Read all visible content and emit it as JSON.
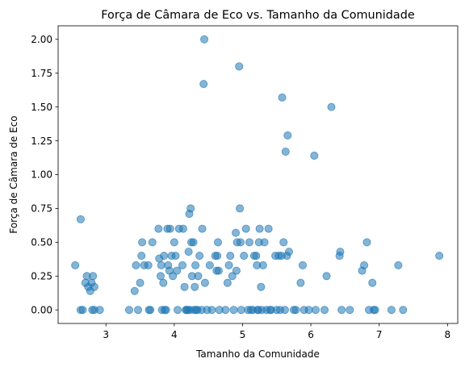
{
  "chart_data": {
    "type": "scatter",
    "title": "Força de Câmara de Eco vs. Tamanho da Comunidade",
    "xlabel": "Tamanho da Comunidade",
    "ylabel": "Força de Câmara de Eco",
    "xlim": [
      2.3,
      8.15
    ],
    "ylim": [
      -0.1,
      2.1
    ],
    "xticks": [
      3,
      4,
      5,
      6,
      7,
      8
    ],
    "xtick_labels": [
      "3",
      "4",
      "5",
      "6",
      "7",
      "8"
    ],
    "yticks": [
      0.0,
      0.25,
      0.5,
      0.75,
      1.0,
      1.25,
      1.5,
      1.75,
      2.0
    ],
    "ytick_labels": [
      "0.00",
      "0.25",
      "0.50",
      "0.75",
      "1.00",
      "1.25",
      "1.50",
      "1.75",
      "2.00"
    ],
    "grid": false,
    "point_color": "#1f77b4",
    "point_alpha": 0.55,
    "points": [
      {
        "x": 2.55,
        "y": 0.33
      },
      {
        "x": 2.63,
        "y": 0.67
      },
      {
        "x": 2.63,
        "y": 0.0
      },
      {
        "x": 2.66,
        "y": 0.0
      },
      {
        "x": 2.7,
        "y": 0.2
      },
      {
        "x": 2.72,
        "y": 0.25
      },
      {
        "x": 2.74,
        "y": 0.17
      },
      {
        "x": 2.77,
        "y": 0.14
      },
      {
        "x": 2.79,
        "y": 0.2
      },
      {
        "x": 2.8,
        "y": 0.0
      },
      {
        "x": 2.81,
        "y": 0.25
      },
      {
        "x": 2.83,
        "y": 0.17
      },
      {
        "x": 2.83,
        "y": 0.0
      },
      {
        "x": 2.91,
        "y": 0.0
      },
      {
        "x": 3.34,
        "y": 0.0
      },
      {
        "x": 3.42,
        "y": 0.14
      },
      {
        "x": 3.44,
        "y": 0.33
      },
      {
        "x": 3.47,
        "y": 0.0
      },
      {
        "x": 3.5,
        "y": 0.2
      },
      {
        "x": 3.52,
        "y": 0.4
      },
      {
        "x": 3.53,
        "y": 0.5
      },
      {
        "x": 3.56,
        "y": 0.33
      },
      {
        "x": 3.62,
        "y": 0.33
      },
      {
        "x": 3.63,
        "y": 0.0
      },
      {
        "x": 3.65,
        "y": 0.0
      },
      {
        "x": 3.68,
        "y": 0.5
      },
      {
        "x": 3.77,
        "y": 0.6
      },
      {
        "x": 3.78,
        "y": 0.38
      },
      {
        "x": 3.8,
        "y": 0.25
      },
      {
        "x": 3.81,
        "y": 0.33
      },
      {
        "x": 3.82,
        "y": 0.0
      },
      {
        "x": 3.84,
        "y": 0.2
      },
      {
        "x": 3.85,
        "y": 0.4
      },
      {
        "x": 3.86,
        "y": 0.0
      },
      {
        "x": 3.88,
        "y": 0.0
      },
      {
        "x": 3.9,
        "y": 0.6
      },
      {
        "x": 3.91,
        "y": 0.33
      },
      {
        "x": 3.93,
        "y": 0.29
      },
      {
        "x": 3.94,
        "y": 0.6
      },
      {
        "x": 3.96,
        "y": 0.4
      },
      {
        "x": 3.98,
        "y": 0.25
      },
      {
        "x": 4.0,
        "y": 0.5
      },
      {
        "x": 4.02,
        "y": 0.4
      },
      {
        "x": 4.04,
        "y": 0.29
      },
      {
        "x": 4.05,
        "y": 0.0
      },
      {
        "x": 4.07,
        "y": 0.6
      },
      {
        "x": 4.12,
        "y": 0.33
      },
      {
        "x": 4.13,
        "y": 0.6
      },
      {
        "x": 4.15,
        "y": 0.17
      },
      {
        "x": 4.17,
        "y": 0.0
      },
      {
        "x": 4.18,
        "y": 0.0
      },
      {
        "x": 4.2,
        "y": 0.0
      },
      {
        "x": 4.21,
        "y": 0.43
      },
      {
        "x": 4.22,
        "y": 0.71
      },
      {
        "x": 4.23,
        "y": 0.0
      },
      {
        "x": 4.24,
        "y": 0.75
      },
      {
        "x": 4.25,
        "y": 0.5
      },
      {
        "x": 4.26,
        "y": 0.25
      },
      {
        "x": 4.28,
        "y": 0.5
      },
      {
        "x": 4.29,
        "y": 0.0
      },
      {
        "x": 4.3,
        "y": 0.17
      },
      {
        "x": 4.31,
        "y": 0.33
      },
      {
        "x": 4.32,
        "y": 0.0
      },
      {
        "x": 4.34,
        "y": 0.0
      },
      {
        "x": 4.35,
        "y": 0.25
      },
      {
        "x": 4.37,
        "y": 0.4
      },
      {
        "x": 4.4,
        "y": 0.0
      },
      {
        "x": 4.41,
        "y": 0.6
      },
      {
        "x": 4.43,
        "y": 1.67
      },
      {
        "x": 4.44,
        "y": 2.0
      },
      {
        "x": 4.45,
        "y": 0.2
      },
      {
        "x": 4.48,
        "y": 0.0
      },
      {
        "x": 4.52,
        "y": 0.33
      },
      {
        "x": 4.55,
        "y": 0.0
      },
      {
        "x": 4.6,
        "y": 0.4
      },
      {
        "x": 4.62,
        "y": 0.29
      },
      {
        "x": 4.63,
        "y": 0.4
      },
      {
        "x": 4.64,
        "y": 0.5
      },
      {
        "x": 4.65,
        "y": 0.29
      },
      {
        "x": 4.66,
        "y": 0.0
      },
      {
        "x": 4.75,
        "y": 0.0
      },
      {
        "x": 4.78,
        "y": 0.2
      },
      {
        "x": 4.8,
        "y": 0.33
      },
      {
        "x": 4.82,
        "y": 0.4
      },
      {
        "x": 4.85,
        "y": 0.25
      },
      {
        "x": 4.87,
        "y": 0.0
      },
      {
        "x": 4.9,
        "y": 0.57
      },
      {
        "x": 4.91,
        "y": 0.29
      },
      {
        "x": 4.92,
        "y": 0.5
      },
      {
        "x": 4.95,
        "y": 1.8
      },
      {
        "x": 4.96,
        "y": 0.75
      },
      {
        "x": 4.97,
        "y": 0.5
      },
      {
        "x": 4.98,
        "y": 0.0
      },
      {
        "x": 5.02,
        "y": 0.4
      },
      {
        "x": 5.05,
        "y": 0.6
      },
      {
        "x": 5.08,
        "y": 0.0
      },
      {
        "x": 5.1,
        "y": 0.5
      },
      {
        "x": 5.12,
        "y": 0.0
      },
      {
        "x": 5.15,
        "y": 0.0
      },
      {
        "x": 5.17,
        "y": 0.4
      },
      {
        "x": 5.2,
        "y": 0.4
      },
      {
        "x": 5.21,
        "y": 0.33
      },
      {
        "x": 5.22,
        "y": 0.0
      },
      {
        "x": 5.23,
        "y": 0.0
      },
      {
        "x": 5.24,
        "y": 0.5
      },
      {
        "x": 5.25,
        "y": 0.6
      },
      {
        "x": 5.27,
        "y": 0.17
      },
      {
        "x": 5.28,
        "y": 0.0
      },
      {
        "x": 5.3,
        "y": 0.33
      },
      {
        "x": 5.32,
        "y": 0.5
      },
      {
        "x": 5.35,
        "y": 0.0
      },
      {
        "x": 5.38,
        "y": 0.6
      },
      {
        "x": 5.4,
        "y": 0.0
      },
      {
        "x": 5.42,
        "y": 0.0
      },
      {
        "x": 5.48,
        "y": 0.4
      },
      {
        "x": 5.5,
        "y": 0.0
      },
      {
        "x": 5.53,
        "y": 0.4
      },
      {
        "x": 5.55,
        "y": 0.0
      },
      {
        "x": 5.57,
        "y": 0.4
      },
      {
        "x": 5.58,
        "y": 1.57
      },
      {
        "x": 5.6,
        "y": 0.5
      },
      {
        "x": 5.62,
        "y": 0.0
      },
      {
        "x": 5.63,
        "y": 1.17
      },
      {
        "x": 5.65,
        "y": 0.4
      },
      {
        "x": 5.66,
        "y": 1.29
      },
      {
        "x": 5.68,
        "y": 0.43
      },
      {
        "x": 5.75,
        "y": 0.0
      },
      {
        "x": 5.78,
        "y": 0.0
      },
      {
        "x": 5.85,
        "y": 0.2
      },
      {
        "x": 5.88,
        "y": 0.33
      },
      {
        "x": 5.9,
        "y": 0.0
      },
      {
        "x": 5.97,
        "y": 0.0
      },
      {
        "x": 6.05,
        "y": 1.14
      },
      {
        "x": 6.07,
        "y": 0.0
      },
      {
        "x": 6.2,
        "y": 0.0
      },
      {
        "x": 6.23,
        "y": 0.25
      },
      {
        "x": 6.3,
        "y": 1.5
      },
      {
        "x": 6.42,
        "y": 0.4
      },
      {
        "x": 6.43,
        "y": 0.43
      },
      {
        "x": 6.45,
        "y": 0.0
      },
      {
        "x": 6.57,
        "y": 0.0
      },
      {
        "x": 6.75,
        "y": 0.29
      },
      {
        "x": 6.78,
        "y": 0.33
      },
      {
        "x": 6.82,
        "y": 0.5
      },
      {
        "x": 6.85,
        "y": 0.0
      },
      {
        "x": 6.9,
        "y": 0.2
      },
      {
        "x": 6.92,
        "y": 0.0
      },
      {
        "x": 6.94,
        "y": 0.0
      },
      {
        "x": 7.18,
        "y": 0.0
      },
      {
        "x": 7.28,
        "y": 0.33
      },
      {
        "x": 7.35,
        "y": 0.0
      },
      {
        "x": 7.88,
        "y": 0.4
      }
    ]
  }
}
